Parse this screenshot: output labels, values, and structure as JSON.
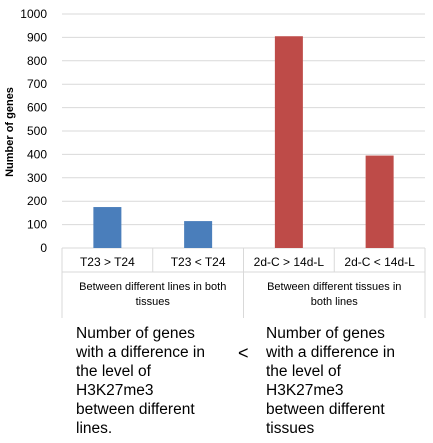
{
  "chart_data": {
    "type": "bar",
    "ylabel": "Number of genes",
    "ylim": [
      0,
      1000
    ],
    "yticks": [
      0,
      100,
      200,
      300,
      400,
      500,
      600,
      700,
      800,
      900,
      1000
    ],
    "grid": true,
    "categories": [
      "T23 > T24",
      "T23 < T24",
      "2d-C > 14d-L",
      "2d-C < 14d-L"
    ],
    "values": [
      175,
      115,
      905,
      395
    ],
    "bar_colors": [
      "#4a7ebb",
      "#4a7ebb",
      "#be4b48",
      "#be4b48"
    ],
    "groups": [
      {
        "label": "Between different lines in both tissues"
      },
      {
        "label": "Between different tissues in both lines"
      }
    ]
  },
  "captions": {
    "left": "Number of genes\nwith a difference in\nthe level of\nH3K27me3\nbetween different\nlines.",
    "comparison_sign": "<",
    "right": "Number of genes\nwith a difference in\nthe level of\nH3K27me3\nbetween different\ntissues"
  }
}
